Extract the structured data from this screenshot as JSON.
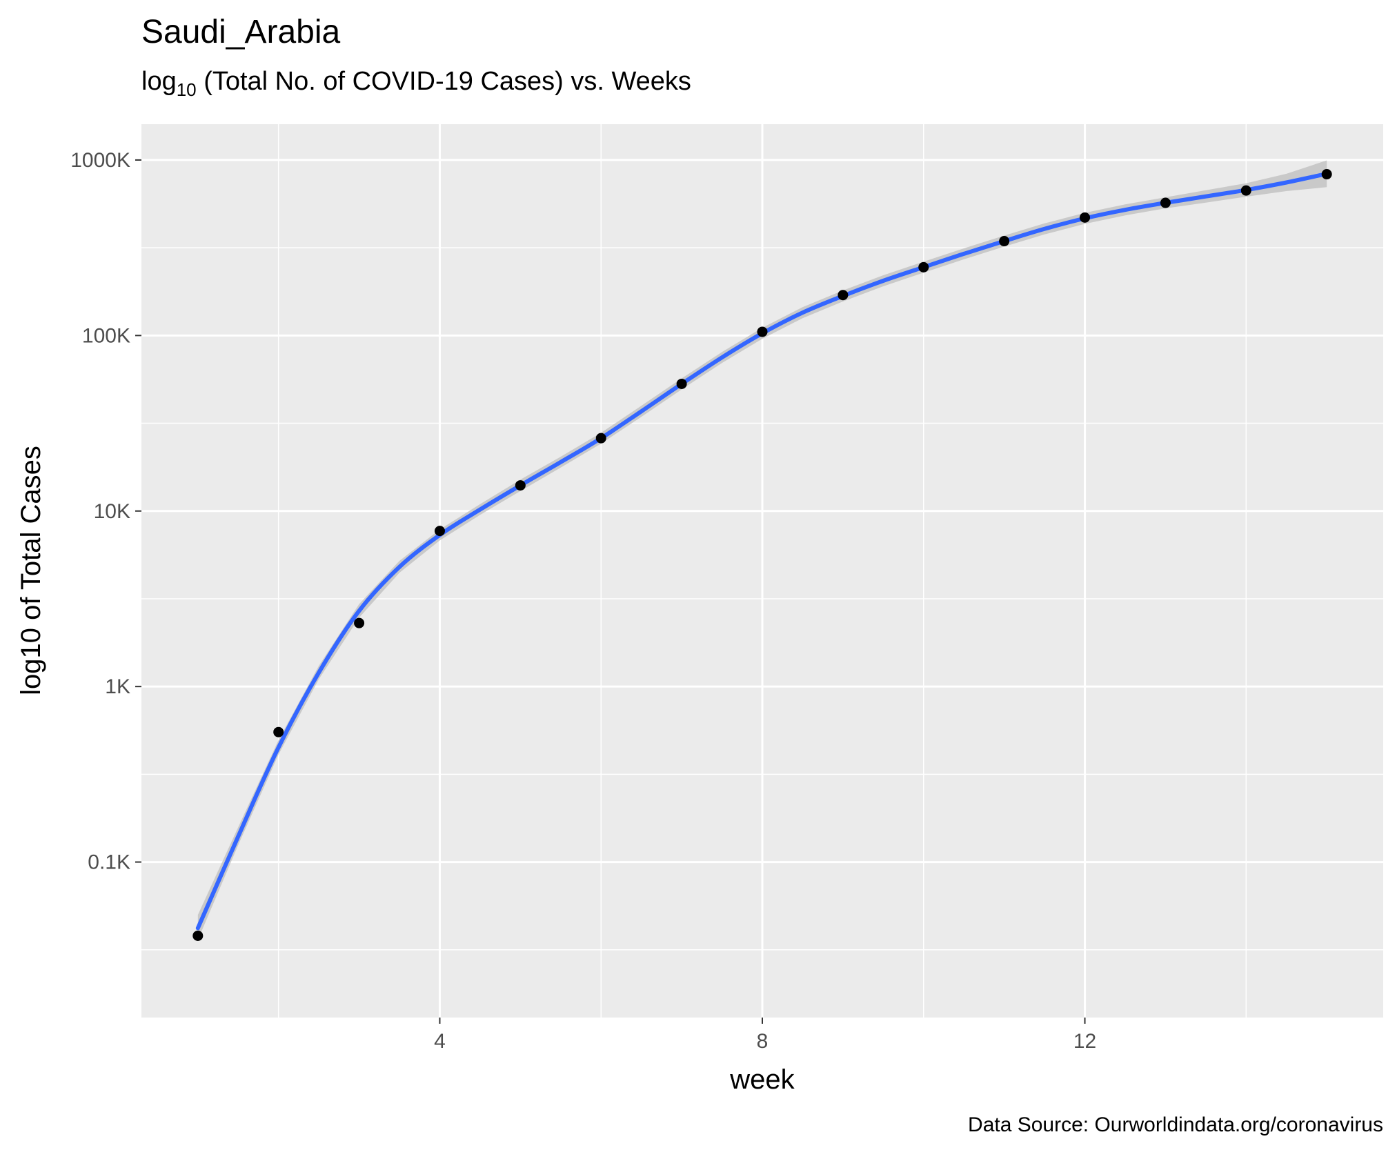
{
  "chart_data": {
    "type": "scatter",
    "title": "Saudi_Arabia",
    "subtitle": {
      "prefix": "log",
      "subscript": "10",
      "rest": " (Total No. of COVID-19 Cases) vs. Weeks"
    },
    "xlabel": "week",
    "ylabel": "log10 of Total Cases",
    "caption": "Data Source: Ourworldindata.org/coronavirus",
    "x_scale": "linear",
    "y_scale": "log10",
    "xlim": [
      0.3,
      15.7
    ],
    "ylim": [
      13,
      1600000
    ],
    "x_ticks": [
      {
        "value": 4,
        "label": "4"
      },
      {
        "value": 8,
        "label": "8"
      },
      {
        "value": 12,
        "label": "12"
      }
    ],
    "x_minor_ticks": [
      2,
      6,
      10,
      14
    ],
    "y_ticks": [
      {
        "value": 100,
        "label": "0.1K"
      },
      {
        "value": 1000,
        "label": "1K"
      },
      {
        "value": 10000,
        "label": "10K"
      },
      {
        "value": 100000,
        "label": "100K"
      },
      {
        "value": 1000000,
        "label": "1000K"
      }
    ],
    "grid": true,
    "panel_background": "#ebebeb",
    "grid_color": "#ffffff",
    "point_color": "#000000",
    "smooth_color": "#3366ff",
    "ribbon_color": "#bebebe",
    "points": [
      {
        "x": 1,
        "y": 38
      },
      {
        "x": 2,
        "y": 550
      },
      {
        "x": 3,
        "y": 2300
      },
      {
        "x": 4,
        "y": 7700
      },
      {
        "x": 5,
        "y": 14000
      },
      {
        "x": 6,
        "y": 26000
      },
      {
        "x": 7,
        "y": 53000
      },
      {
        "x": 8,
        "y": 105000
      },
      {
        "x": 9,
        "y": 170000
      },
      {
        "x": 10,
        "y": 245000
      },
      {
        "x": 11,
        "y": 345000
      },
      {
        "x": 12,
        "y": 470000
      },
      {
        "x": 13,
        "y": 570000
      },
      {
        "x": 14,
        "y": 670000
      },
      {
        "x": 15,
        "y": 830000
      }
    ],
    "smooth": {
      "method": "loess",
      "fit": [
        {
          "x": 1.0,
          "y": 42,
          "lo": 36,
          "hi": 50
        },
        {
          "x": 1.5,
          "y": 140,
          "lo": 125,
          "hi": 158
        },
        {
          "x": 2.0,
          "y": 450,
          "lo": 410,
          "hi": 495
        },
        {
          "x": 2.5,
          "y": 1200,
          "lo": 1100,
          "hi": 1310
        },
        {
          "x": 3.0,
          "y": 2700,
          "lo": 2470,
          "hi": 2950
        },
        {
          "x": 3.5,
          "y": 4800,
          "lo": 4450,
          "hi": 5200
        },
        {
          "x": 4.0,
          "y": 7300,
          "lo": 6800,
          "hi": 7850
        },
        {
          "x": 4.5,
          "y": 10200,
          "lo": 9500,
          "hi": 10950
        },
        {
          "x": 5.0,
          "y": 14000,
          "lo": 13000,
          "hi": 15100
        },
        {
          "x": 5.5,
          "y": 19000,
          "lo": 17700,
          "hi": 20400
        },
        {
          "x": 6.0,
          "y": 26000,
          "lo": 24200,
          "hi": 27900
        },
        {
          "x": 6.5,
          "y": 37000,
          "lo": 34400,
          "hi": 39800
        },
        {
          "x": 7.0,
          "y": 53000,
          "lo": 49300,
          "hi": 57000
        },
        {
          "x": 7.5,
          "y": 75000,
          "lo": 69800,
          "hi": 80600
        },
        {
          "x": 8.0,
          "y": 103000,
          "lo": 95800,
          "hi": 110700
        },
        {
          "x": 8.5,
          "y": 135000,
          "lo": 125600,
          "hi": 145100
        },
        {
          "x": 9.0,
          "y": 168000,
          "lo": 156300,
          "hi": 180600
        },
        {
          "x": 9.5,
          "y": 205000,
          "lo": 190700,
          "hi": 220400
        },
        {
          "x": 10.0,
          "y": 245000,
          "lo": 228000,
          "hi": 263400
        },
        {
          "x": 10.5,
          "y": 292000,
          "lo": 271600,
          "hi": 313900
        },
        {
          "x": 11.0,
          "y": 345000,
          "lo": 321000,
          "hi": 370900
        },
        {
          "x": 11.5,
          "y": 405000,
          "lo": 376700,
          "hi": 435400
        },
        {
          "x": 12.0,
          "y": 465000,
          "lo": 432600,
          "hi": 499900
        },
        {
          "x": 12.5,
          "y": 520000,
          "lo": 483700,
          "hi": 559000
        },
        {
          "x": 13.0,
          "y": 570000,
          "lo": 530200,
          "hi": 612800
        },
        {
          "x": 13.5,
          "y": 620000,
          "lo": 572000,
          "hi": 672000
        },
        {
          "x": 14.0,
          "y": 675000,
          "lo": 618000,
          "hi": 737000
        },
        {
          "x": 14.5,
          "y": 745000,
          "lo": 665000,
          "hi": 835000
        },
        {
          "x": 15.0,
          "y": 835000,
          "lo": 700000,
          "hi": 995000
        }
      ]
    }
  }
}
